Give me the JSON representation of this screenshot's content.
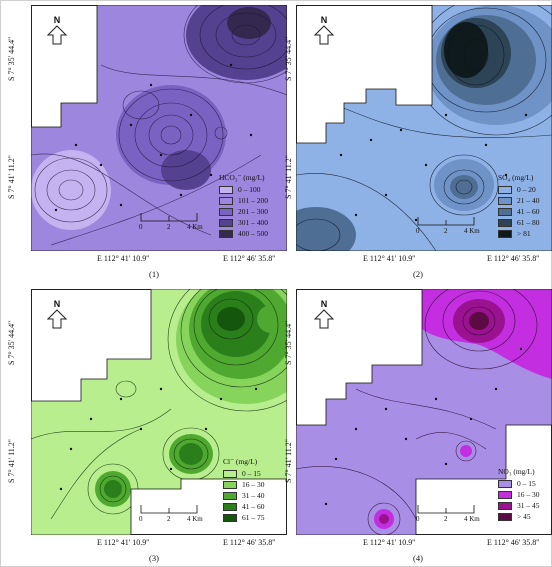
{
  "north_label": "N",
  "latitudes": [
    "S 7° 35' 44.4''",
    "S 7° 41' 11.2''"
  ],
  "longitudes": [
    "E 112° 41' 10.9''",
    "E 112° 46' 35.8''"
  ],
  "scale": {
    "ticks": [
      "0",
      "2",
      "4 Km"
    ]
  },
  "panels": [
    {
      "number": "(1)",
      "legend_title": "HCO₃⁻ (mg/L)",
      "classes": [
        {
          "label": "0 – 100",
          "color": "#c4b3f0"
        },
        {
          "label": "101 – 200",
          "color": "#9c86de"
        },
        {
          "label": "201 – 300",
          "color": "#7a62c2"
        },
        {
          "label": "301 – 400",
          "color": "#54418f"
        },
        {
          "label": "400 – 500",
          "color": "#35284f"
        }
      ]
    },
    {
      "number": "(2)",
      "legend_title": "SO₄ (mg/L)",
      "classes": [
        {
          "label": "0 – 20",
          "color": "#8fb2e6"
        },
        {
          "label": "21 – 40",
          "color": "#6f93c6"
        },
        {
          "label": "41 – 60",
          "color": "#4e6f93"
        },
        {
          "label": "61 – 80",
          "color": "#2d4356"
        },
        {
          "label": "> 81",
          "color": "#0f1a1c"
        }
      ]
    },
    {
      "number": "(3)",
      "legend_title": "Cl⁻ (mg/L)",
      "classes": [
        {
          "label": "0 – 15",
          "color": "#b8ee8e"
        },
        {
          "label": "16 – 30",
          "color": "#87d45d"
        },
        {
          "label": "31 – 40",
          "color": "#4fa830"
        },
        {
          "label": "41 – 60",
          "color": "#2a7f1b"
        },
        {
          "label": "61 – 75",
          "color": "#14560c"
        }
      ]
    },
    {
      "number": "(4)",
      "legend_title": "NO₃ (mg/L)",
      "classes": [
        {
          "label": "0 – 15",
          "color": "#a98ee6"
        },
        {
          "label": "16 – 30",
          "color": "#c22ee0"
        },
        {
          "label": "31 – 45",
          "color": "#9a128f"
        },
        {
          "label": "> 45",
          "color": "#5c0a44"
        }
      ]
    }
  ]
}
